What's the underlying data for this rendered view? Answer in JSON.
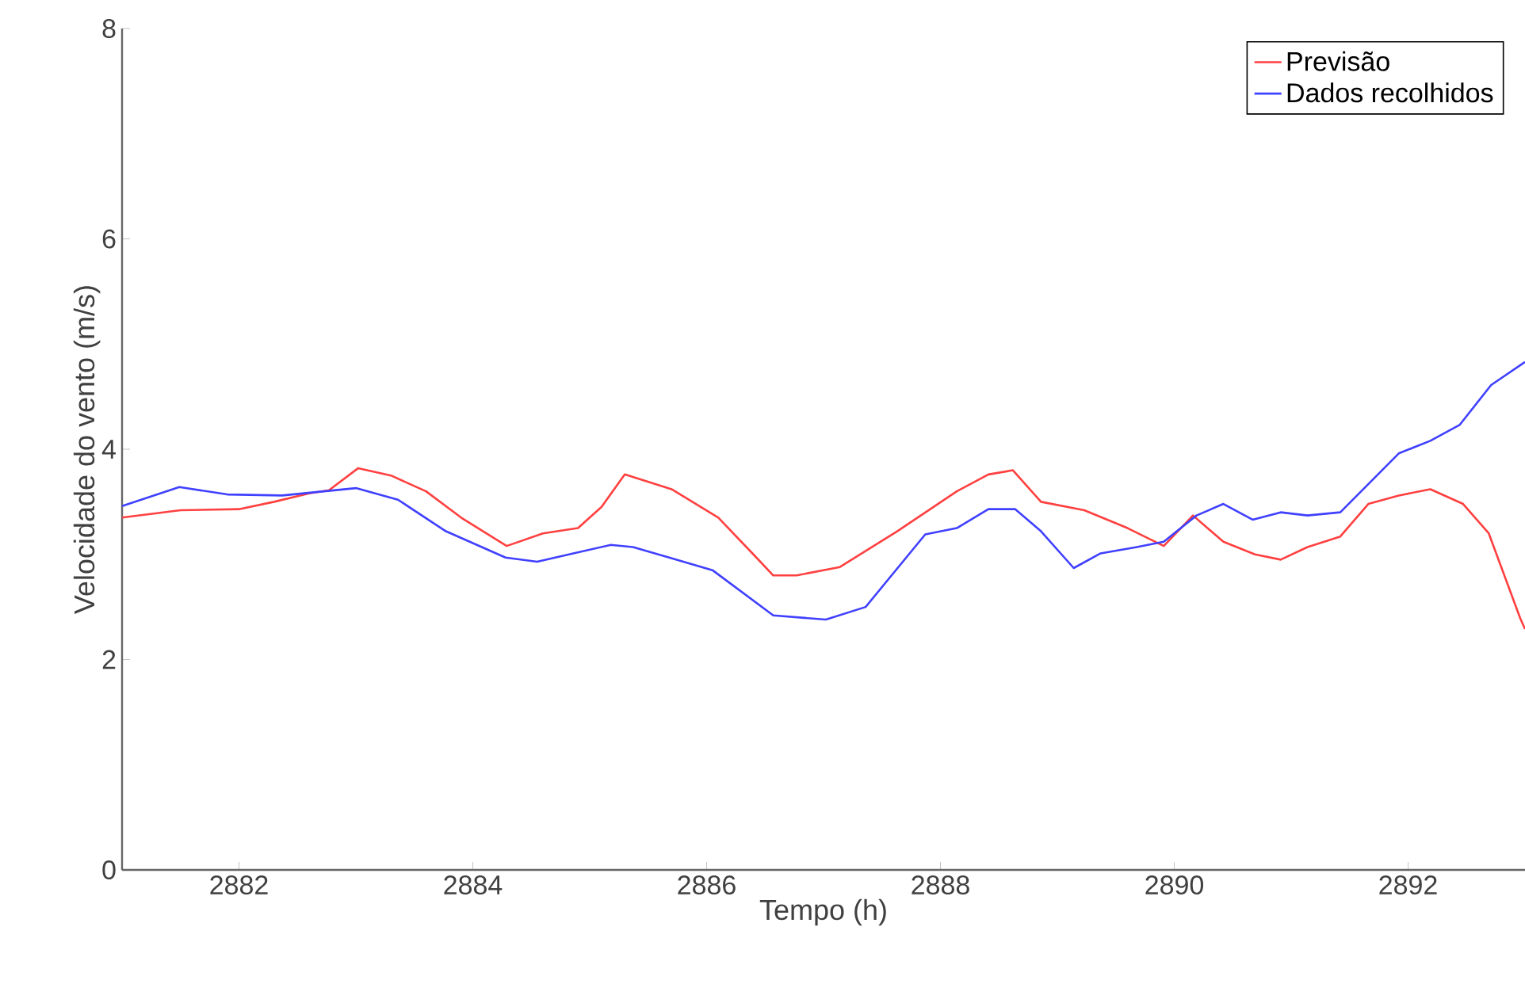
{
  "chart_data": {
    "type": "line",
    "xlabel": "Tempo (h)",
    "ylabel": "Velocidade do vento (m/s)",
    "xlim": [
      2881,
      2893
    ],
    "ylim": [
      0,
      8
    ],
    "xticks": [
      2882,
      2884,
      2886,
      2888,
      2890,
      2892
    ],
    "yticks": [
      0,
      2,
      4,
      6,
      8
    ],
    "legend": "top right",
    "marker": "none",
    "line_style": "solid",
    "series": [
      {
        "name": "Previsão",
        "color": "#ff4040",
        "x": [
          2881,
          2881.5,
          2882,
          2882.3,
          2882.6,
          2882.77,
          2883.02,
          2883.3,
          2883.6,
          2883.9,
          2884.29,
          2884.6,
          2884.9,
          2885.1,
          2885.3,
          2885.7,
          2886.1,
          2886.4,
          2886.57,
          2886.77,
          2887.14,
          2887.63,
          2888.14,
          2888.41,
          2888.62,
          2888.86,
          2889.23,
          2889.6,
          2889.91,
          2890.16,
          2890.42,
          2890.69,
          2890.91,
          2891.14,
          2891.42,
          2891.66,
          2891.92,
          2892.19,
          2892.47,
          2892.69,
          2892.96,
          2893
        ],
        "values": [
          3.35,
          3.42,
          3.43,
          3.5,
          3.58,
          3.61,
          3.82,
          3.75,
          3.6,
          3.35,
          3.08,
          3.2,
          3.25,
          3.45,
          3.76,
          3.62,
          3.35,
          3.0,
          2.8,
          2.8,
          2.88,
          3.22,
          3.6,
          3.76,
          3.8,
          3.5,
          3.42,
          3.25,
          3.08,
          3.37,
          3.12,
          3.0,
          2.95,
          3.07,
          3.17,
          3.48,
          3.56,
          3.62,
          3.48,
          3.2,
          2.39,
          2.29
        ]
      },
      {
        "name": "Dados recolhidos",
        "color": "#4040ff",
        "x": [
          2881,
          2881.49,
          2881.9,
          2882.37,
          2883.0,
          2883.36,
          2883.77,
          2884.28,
          2884.55,
          2884.86,
          2885.18,
          2885.37,
          2885.68,
          2886.05,
          2886.57,
          2887.02,
          2887.36,
          2887.87,
          2888.14,
          2888.41,
          2888.64,
          2888.86,
          2889.14,
          2889.37,
          2889.68,
          2889.91,
          2890.19,
          2890.42,
          2890.67,
          2890.91,
          2891.14,
          2891.42,
          2891.92,
          2892.19,
          2892.44,
          2892.71,
          2893
        ],
        "values": [
          3.46,
          3.64,
          3.57,
          3.56,
          3.63,
          3.52,
          3.22,
          2.97,
          2.93,
          3.01,
          3.09,
          3.07,
          2.97,
          2.85,
          2.42,
          2.38,
          2.5,
          3.19,
          3.25,
          3.43,
          3.43,
          3.22,
          2.87,
          3.01,
          3.07,
          3.12,
          3.37,
          3.48,
          3.33,
          3.4,
          3.37,
          3.4,
          3.96,
          4.08,
          4.23,
          4.61,
          4.83
        ]
      }
    ]
  }
}
